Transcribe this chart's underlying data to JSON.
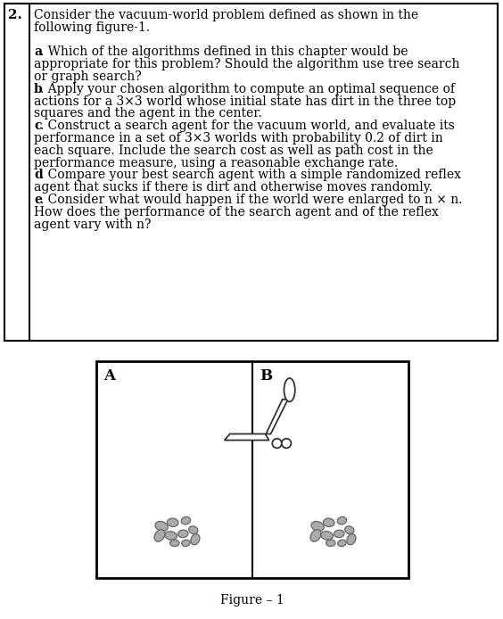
{
  "bg_color": "#ffffff",
  "text_color": "#000000",
  "border_color": "#000000",
  "fig_width": 5.64,
  "fig_height": 6.94,
  "question_number": "2.",
  "figure_caption": "Figure – 1",
  "label_A": "A",
  "label_B": "B",
  "dirt_color_fill": "#aaaaaa",
  "dirt_color_edge": "#666666",
  "vacuum_edge": "#333333",
  "lines": [
    {
      "text": "Consider the vacuum-world problem defined as shown in the",
      "bold": false,
      "indent": false
    },
    {
      "text": "following figure-1.",
      "bold": false,
      "indent": false
    },
    {
      "text": "",
      "bold": false,
      "indent": false
    },
    {
      "text": ". Which of the algorithms defined in this chapter would be",
      "bold": false,
      "indent": false,
      "prefix": "a",
      "prefix_bold": true
    },
    {
      "text": "appropriate for this problem? Should the algorithm use tree search",
      "bold": false,
      "indent": false
    },
    {
      "text": "or graph search?",
      "bold": false,
      "indent": false
    },
    {
      "text": ". Apply your chosen algorithm to compute an optimal sequence of",
      "bold": false,
      "indent": false,
      "prefix": "b",
      "prefix_bold": true
    },
    {
      "text": "actions for a 3×3 world whose initial state has dirt in the three top",
      "bold": false,
      "indent": false
    },
    {
      "text": "squares and the agent in the center.",
      "bold": false,
      "indent": false
    },
    {
      "text": ". Construct a search agent for the vacuum world, and evaluate its",
      "bold": false,
      "indent": false,
      "prefix": "c",
      "prefix_bold": true
    },
    {
      "text": "performance in a set of 3×3 worlds with probability 0.2 of dirt in",
      "bold": false,
      "indent": false
    },
    {
      "text": "each square. Include the search cost as well as path cost in the",
      "bold": false,
      "indent": false
    },
    {
      "text": "performance measure, using a reasonable exchange rate.",
      "bold": false,
      "indent": false
    },
    {
      "text": ". Compare your best search agent with a simple randomized reflex",
      "bold": false,
      "indent": false,
      "prefix": "d",
      "prefix_bold": true
    },
    {
      "text": "agent that sucks if there is dirt and otherwise moves randomly.",
      "bold": false,
      "indent": false
    },
    {
      "text": ". Consider what would happen if the world were enlarged to n × n.",
      "bold": false,
      "indent": false,
      "prefix": "e",
      "prefix_bold": true
    },
    {
      "text": "How does the performance of the search agent and of the reflex",
      "bold": false,
      "indent": false
    },
    {
      "text": "agent vary with n?",
      "bold": false,
      "indent": false
    }
  ]
}
